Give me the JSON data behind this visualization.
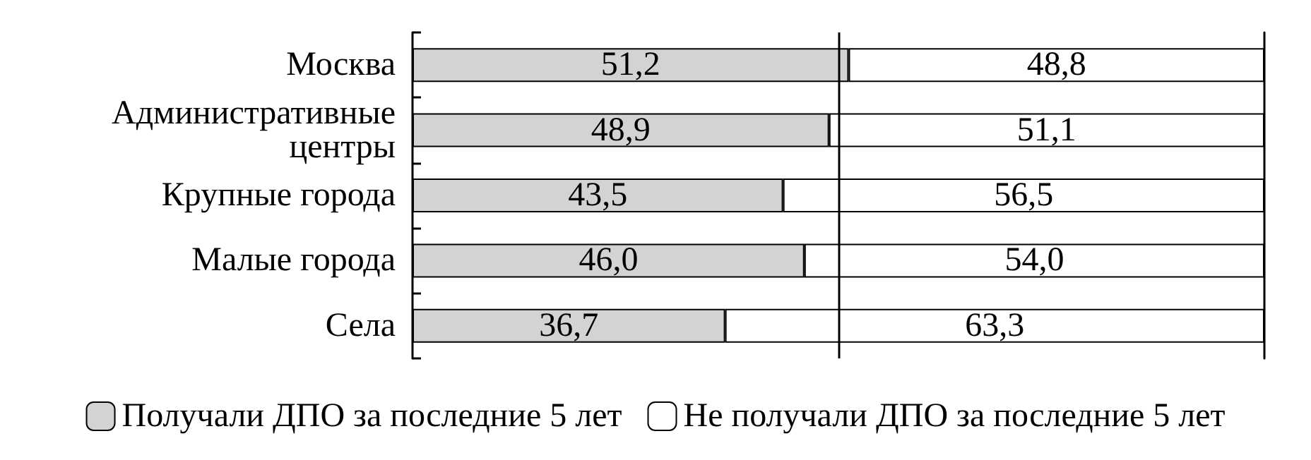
{
  "chart_data": {
    "type": "bar",
    "orientation": "horizontal",
    "stacked": true,
    "categories": [
      "Москва",
      "Административные центры",
      "Крупные города",
      "Малые города",
      "Села"
    ],
    "series": [
      {
        "name": "Получали ДПО за последние 5 лет",
        "color": "#d3d3d3",
        "values": [
          51.2,
          48.9,
          43.5,
          46.0,
          36.7
        ],
        "value_labels": [
          "51,2",
          "48,9",
          "43,5",
          "46,0",
          "36,7"
        ]
      },
      {
        "name": "Не получали ДПО за последние 5 лет",
        "color": "#ffffff",
        "values": [
          48.8,
          51.1,
          56.5,
          54.0,
          63.3
        ],
        "value_labels": [
          "48,8",
          "51,1",
          "56,5",
          "54,0",
          "63,3"
        ]
      }
    ],
    "xlim": [
      0,
      100
    ],
    "ref_lines": [
      {
        "axis": "x",
        "value": 50
      }
    ],
    "legend": "bottom",
    "tick_labels": "y"
  }
}
